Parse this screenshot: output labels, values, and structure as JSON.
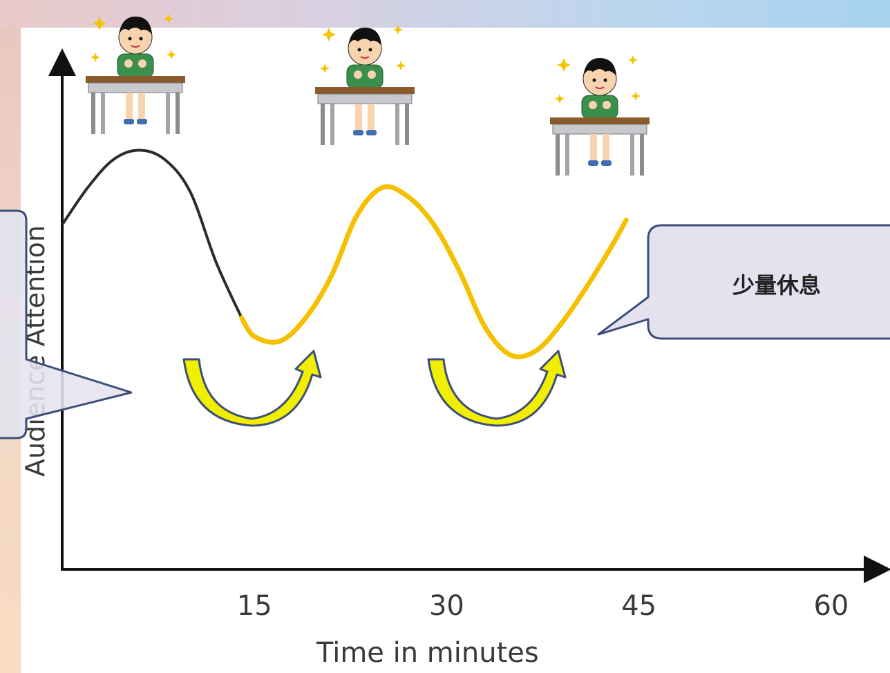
{
  "chart_data": {
    "type": "line",
    "xlabel": "Time in minutes",
    "ylabel": "Audience Attention",
    "x_ticks": [
      "15",
      "30",
      "45",
      "60"
    ],
    "xlim": [
      0,
      62
    ],
    "ylim": [
      0,
      100
    ],
    "series": [
      {
        "segment": "initial",
        "color": "#2b2b2b",
        "x": [
          0,
          2,
          4,
          6,
          8,
          10,
          12,
          14
        ],
        "y": [
          74,
          82,
          88,
          90,
          88,
          81,
          66,
          54
        ]
      },
      {
        "segment": "with-breaks",
        "color": "#f5c000",
        "x": [
          14,
          15,
          17,
          19,
          21,
          23,
          25,
          27,
          29,
          31,
          33,
          35,
          37,
          39,
          41,
          43,
          44
        ],
        "y": [
          54,
          50,
          49,
          54,
          63,
          76,
          82,
          80,
          74,
          64,
          52,
          46,
          47,
          53,
          61,
          70,
          75
        ]
      }
    ]
  },
  "callouts": {
    "right": "少量休息"
  },
  "colors": {
    "axis": "#111111",
    "break_arrow_fill": "#f2ee00",
    "break_arrow_stroke": "#3b4f7a",
    "callout_fill": "#e4e2ef",
    "callout_stroke": "#3b4f7a"
  },
  "icons": [
    "student-at-desk-icon",
    "break-arrow-icon"
  ]
}
